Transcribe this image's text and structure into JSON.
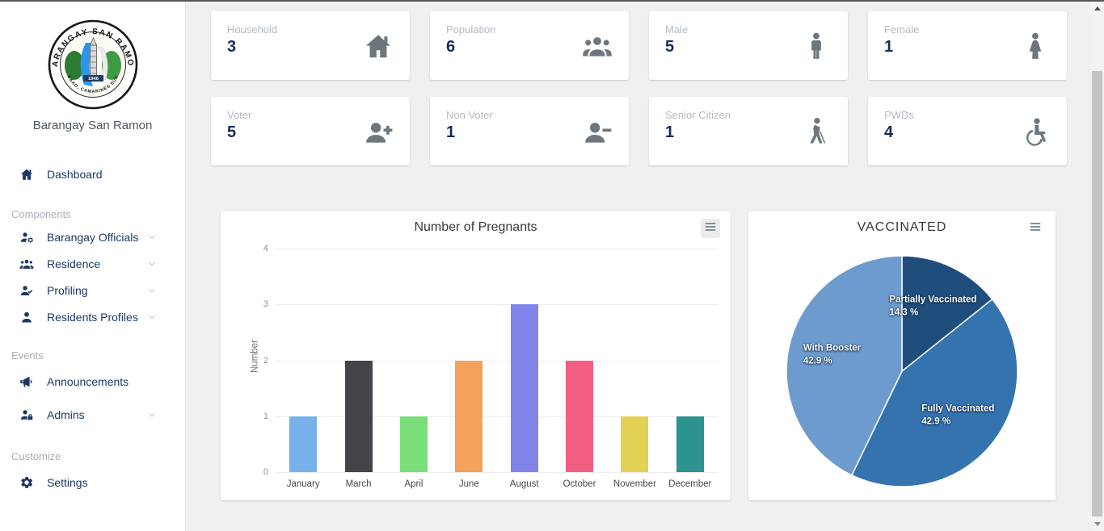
{
  "page": {
    "top_border_color": "#56575a",
    "main_background": "#eef0f1"
  },
  "sidebar": {
    "brand": "Barangay San Ramon",
    "logo": {
      "ring_text_top": "BARANGAY SAN RAMON",
      "ring_text_bottom": "BAAO, CAMARINES SUR",
      "year": "1946"
    },
    "text_color": "#1c3766",
    "section_header_color": "#a9aeb5",
    "groups": [
      {
        "header": "",
        "items": [
          {
            "label": "Dashboard",
            "icon": "home-icon",
            "chevron": false
          }
        ]
      },
      {
        "header": "Components",
        "items": [
          {
            "label": "Barangay Officials",
            "icon": "user-gear-icon",
            "chevron": true
          },
          {
            "label": "Residence",
            "icon": "users-icon",
            "chevron": true
          },
          {
            "label": "Profiling",
            "icon": "user-check-icon",
            "chevron": true
          },
          {
            "label": "Residents Profiles",
            "icon": "user-icon",
            "chevron": true
          }
        ]
      },
      {
        "header": "Events",
        "items": [
          {
            "label": "Announcements",
            "icon": "bullhorn-icon",
            "chevron": false
          },
          {
            "label": "Admins",
            "icon": "user-lock-icon",
            "chevron": true
          }
        ]
      },
      {
        "header": "Customize",
        "items": [
          {
            "label": "Settings",
            "icon": "gear-icon",
            "chevron": false
          }
        ]
      }
    ]
  },
  "stats": {
    "label_color": "#b3bac2",
    "value_color": "#152c5b",
    "icon_color": "#6d757d",
    "cards": [
      {
        "label": "Household",
        "value": "3",
        "icon": "home-icon"
      },
      {
        "label": "Population",
        "value": "6",
        "icon": "users-icon"
      },
      {
        "label": "Male",
        "value": "5",
        "icon": "male-icon"
      },
      {
        "label": "Female",
        "value": "1",
        "icon": "female-icon"
      },
      {
        "label": "Voter",
        "value": "5",
        "icon": "user-plus-icon"
      },
      {
        "label": "Non Voter",
        "value": "1",
        "icon": "user-minus-icon"
      },
      {
        "label": "Senior Citizen",
        "value": "1",
        "icon": "person-cane-icon"
      },
      {
        "label": "PWDs",
        "value": "4",
        "icon": "wheelchair-icon"
      }
    ]
  },
  "chart_data": [
    {
      "type": "bar",
      "title": "Number of Pregnants",
      "xlabel": "",
      "ylabel": "Number",
      "categories": [
        "January",
        "March",
        "April",
        "June",
        "August",
        "October",
        "November",
        "December"
      ],
      "values": [
        1,
        2,
        1,
        2,
        3,
        2,
        1,
        1
      ],
      "bar_colors": [
        "#77b1e9",
        "#434349",
        "#7ade7a",
        "#f4a159",
        "#8084e8",
        "#f25e82",
        "#e3d153",
        "#2d938e"
      ],
      "ylim": [
        0,
        4
      ],
      "yticks": [
        0,
        1,
        2,
        3,
        4
      ],
      "grid": true,
      "legend": false,
      "toolbar": "menu-icon"
    },
    {
      "type": "pie",
      "title": "VACCINATED",
      "start_angle_deg": 0,
      "direction": "clockwise",
      "legend": "none",
      "labels_on_slices": true,
      "slices": [
        {
          "label": "Partially Vaccinated",
          "pct_label": "14.3 %",
          "value": 14.3,
          "color": "#1f4e7c"
        },
        {
          "label": "Fully Vaccinated",
          "pct_label": "42.9 %",
          "value": 42.9,
          "color": "#3473ae"
        },
        {
          "label": "With Booster",
          "pct_label": "42.9 %",
          "value": 42.9,
          "color": "#6d9bce"
        }
      ],
      "toolbar": "menu-icon"
    }
  ]
}
